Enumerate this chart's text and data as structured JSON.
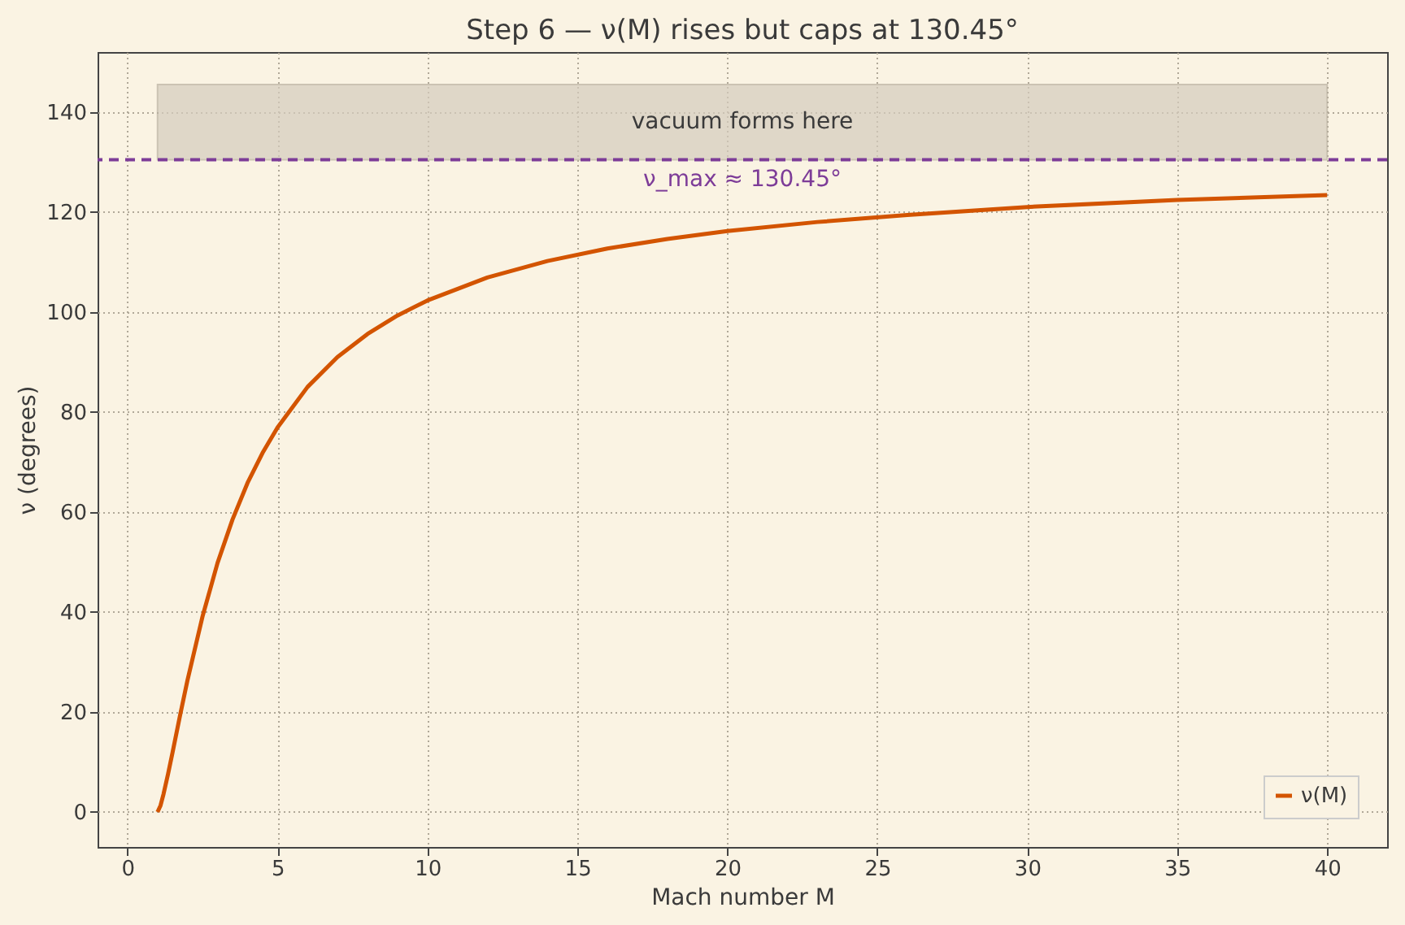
{
  "chart_data": {
    "type": "line",
    "title": "Step 6 — ν(M) rises but caps at 130.45°",
    "xlabel": "Mach number M",
    "ylabel": "ν  (degrees)",
    "series": [
      {
        "name": "ν(M)",
        "color": "#d35400",
        "x": [
          1,
          1.1,
          1.2,
          1.35,
          1.5,
          1.75,
          2,
          2.5,
          3,
          3.5,
          4,
          4.5,
          5,
          6,
          7,
          8,
          9,
          10,
          12,
          14,
          16,
          18,
          20,
          23,
          26,
          30,
          35,
          40
        ],
        "values": [
          0,
          1.3,
          3.6,
          7.6,
          11.9,
          19.3,
          26.4,
          39.1,
          49.8,
          58.5,
          65.8,
          71.8,
          76.9,
          85.0,
          91.0,
          95.6,
          99.3,
          102.3,
          106.9,
          110.2,
          112.7,
          114.6,
          116.2,
          118.0,
          119.4,
          121.0,
          122.4,
          123.4
        ]
      }
    ],
    "ref_lines": [
      {
        "axis": "y",
        "value": 130.45,
        "label": "ν_max ≈ 130.45°",
        "color": "#7d3c98",
        "line_style": "dashed"
      }
    ],
    "bands": [
      {
        "axis": "y",
        "from": 130.45,
        "to": 145.5,
        "label": "vacuum forms here",
        "color": "#d5ccbd"
      }
    ],
    "xlim": [
      -1,
      42
    ],
    "xticks": [
      0,
      5,
      10,
      15,
      20,
      25,
      30,
      35,
      40
    ],
    "ylim": [
      -7,
      152
    ],
    "yticks": [
      0,
      20,
      40,
      60,
      80,
      100,
      120,
      140
    ],
    "grid": true,
    "legend": "bottom right",
    "line_style": "solid",
    "marker": "none"
  }
}
